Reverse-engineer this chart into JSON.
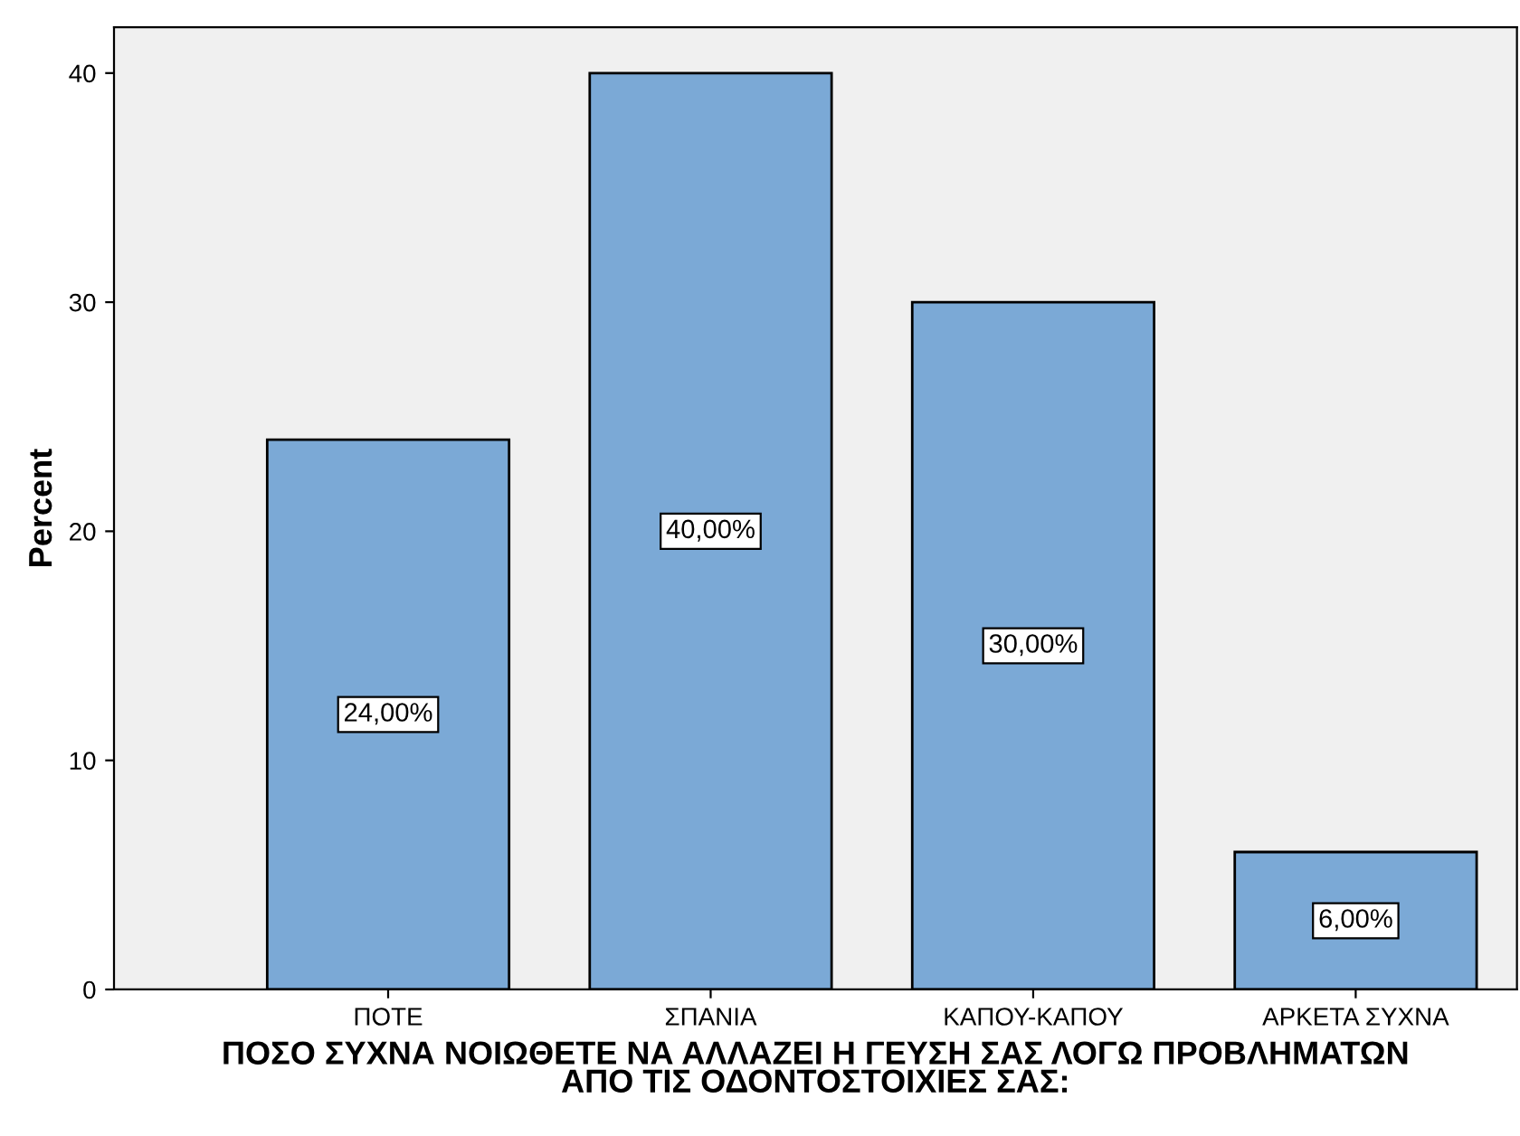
{
  "chart_data": {
    "type": "bar",
    "xlabel": "ΠΟΣΟ ΣΥΧΝΑ ΝΟΙΩΘΕΤΕ ΝΑ ΑΛΛΑΖΕΙ Η ΓΕΥΣΗ ΣΑΣ ΛΟΓΩ ΠΡΟΒΛΗΜΑΤΩΝ\nΑΠΟ ΤΙΣ ΟΔΟΝΤΟΣΤΟΙΧΙΕΣ ΣΑΣ:",
    "ylabel": "Percent",
    "categories": [
      "ΠΟΤΕ",
      "ΣΠΑΝΙΑ",
      "ΚΑΠΟΥ-ΚΑΠΟΥ",
      "ΑΡΚΕΤΑ ΣΥΧΝΑ"
    ],
    "values": [
      24,
      40,
      30,
      6
    ],
    "value_labels": [
      "24,00%",
      "40,00%",
      "30,00%",
      "6,00%"
    ],
    "color": "#7ba9d6",
    "ylim": [
      0,
      42
    ],
    "yticks": [
      0,
      10,
      20,
      30,
      40
    ],
    "grid": false
  }
}
